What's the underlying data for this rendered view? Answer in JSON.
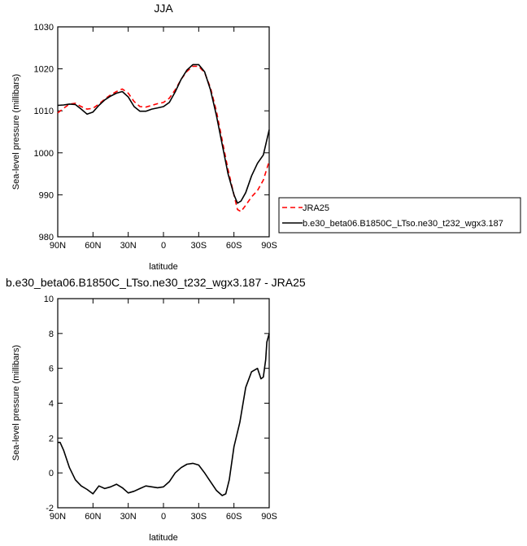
{
  "chart_data": [
    {
      "type": "line",
      "title": "JJA",
      "xlabel": "latitude",
      "ylabel": "Sea-level pressure (millibars)",
      "xlim": [
        90,
        -90
      ],
      "ylim": [
        980,
        1030
      ],
      "x_ticks": [
        90,
        60,
        30,
        0,
        -30,
        -60,
        -90
      ],
      "x_tick_labels": [
        "90N",
        "60N",
        "30N",
        "0",
        "30S",
        "60S",
        "90S"
      ],
      "y_ticks": [
        980,
        990,
        1000,
        1010,
        1020,
        1030
      ],
      "y_tick_labels": [
        "980",
        "990",
        "1000",
        "1010",
        "1020",
        "1030"
      ],
      "legend_position": "right",
      "series": [
        {
          "name": "JRA25",
          "color": "#ff0000",
          "dash": "dashed",
          "x": [
            90,
            85,
            80,
            75,
            70,
            65,
            60,
            55,
            50,
            45,
            40,
            35,
            30,
            25,
            20,
            15,
            10,
            5,
            0,
            -5,
            -10,
            -15,
            -20,
            -25,
            -30,
            -35,
            -40,
            -45,
            -50,
            -55,
            -60,
            -63,
            -66,
            -70,
            -75,
            -80,
            -85,
            -90
          ],
          "values": [
            1009.5,
            1010.6,
            1011.6,
            1011.8,
            1011.0,
            1010.4,
            1010.6,
            1011.6,
            1012.8,
            1013.8,
            1014.6,
            1015.2,
            1014.2,
            1012.2,
            1011.0,
            1010.9,
            1011.3,
            1011.7,
            1012.0,
            1013.0,
            1015.0,
            1017.5,
            1019.4,
            1020.6,
            1020.6,
            1019.1,
            1015.5,
            1010.0,
            1003.0,
            996.0,
            990.0,
            986.5,
            986.0,
            987.5,
            989.5,
            991.0,
            993.5,
            998.0
          ]
        },
        {
          "name": "b.e30_beta06.B1850C_LTso.ne30_t232_wgx3.187",
          "color": "#000000",
          "dash": "solid",
          "x": [
            90,
            85,
            80,
            75,
            70,
            65,
            60,
            55,
            50,
            45,
            40,
            35,
            30,
            25,
            20,
            15,
            10,
            5,
            0,
            -5,
            -10,
            -15,
            -20,
            -25,
            -30,
            -35,
            -40,
            -45,
            -50,
            -55,
            -60,
            -63,
            -66,
            -70,
            -75,
            -80,
            -85,
            -90
          ],
          "values": [
            1011.3,
            1011.4,
            1011.6,
            1011.5,
            1010.4,
            1009.2,
            1009.7,
            1011.3,
            1012.6,
            1013.5,
            1014.2,
            1014.6,
            1013.3,
            1011.0,
            1009.9,
            1009.9,
            1010.4,
            1010.7,
            1011.0,
            1012.0,
            1014.5,
            1017.5,
            1019.7,
            1021.0,
            1021.0,
            1019.3,
            1015.0,
            1009.0,
            1002.0,
            995.0,
            990.0,
            988.0,
            988.5,
            990.5,
            994.5,
            997.5,
            999.5,
            1005.5
          ]
        }
      ]
    },
    {
      "type": "line",
      "title": "b.e30_beta06.B1850C_LTso.ne30_t232_wgx3.187 - JRA25",
      "xlabel": "latitude",
      "ylabel": "Sea-level pressure (millibars)",
      "xlim": [
        90,
        -90
      ],
      "ylim": [
        -2,
        10
      ],
      "x_ticks": [
        90,
        60,
        30,
        0,
        -30,
        -60,
        -90
      ],
      "x_tick_labels": [
        "90N",
        "60N",
        "30N",
        "0",
        "30S",
        "60S",
        "90S"
      ],
      "y_ticks": [
        -2,
        0,
        2,
        4,
        6,
        8,
        10
      ],
      "y_tick_labels": [
        "-2",
        "0",
        "2",
        "4",
        "6",
        "8",
        "10"
      ],
      "series": [
        {
          "color": "#000000",
          "dash": "solid",
          "x": [
            90,
            88,
            85,
            80,
            75,
            70,
            65,
            60,
            55,
            50,
            45,
            40,
            35,
            30,
            25,
            20,
            15,
            10,
            5,
            0,
            -5,
            -10,
            -15,
            -20,
            -25,
            -30,
            -35,
            -40,
            -45,
            -50,
            -53,
            -56,
            -60,
            -65,
            -70,
            -75,
            -80,
            -83,
            -85,
            -87,
            -88,
            -90
          ],
          "values": [
            1.75,
            1.75,
            1.3,
            0.3,
            -0.4,
            -0.75,
            -0.95,
            -1.2,
            -0.75,
            -0.9,
            -0.8,
            -0.65,
            -0.85,
            -1.15,
            -1.05,
            -0.9,
            -0.75,
            -0.8,
            -0.85,
            -0.8,
            -0.5,
            0.0,
            0.3,
            0.5,
            0.55,
            0.45,
            0.0,
            -0.5,
            -1.0,
            -1.3,
            -1.2,
            -0.4,
            1.5,
            2.9,
            4.9,
            5.8,
            6.0,
            5.4,
            5.5,
            6.5,
            7.5,
            8.0
          ]
        }
      ]
    }
  ]
}
